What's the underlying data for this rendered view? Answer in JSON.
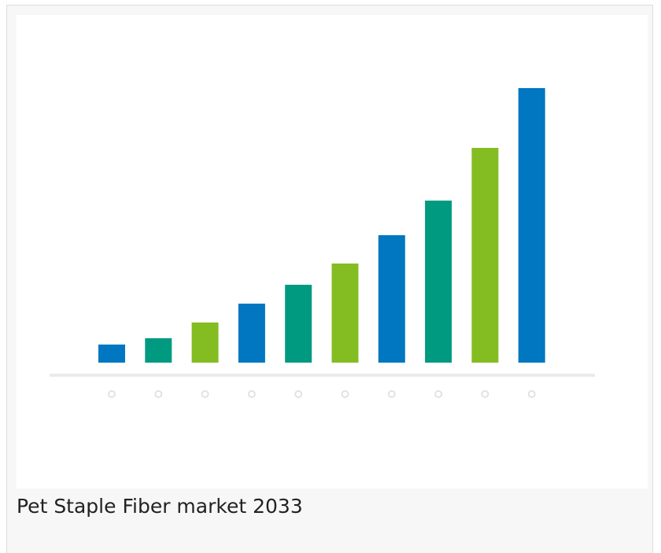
{
  "chart_data": {
    "type": "bar",
    "categories": [
      null,
      null,
      null,
      null,
      null,
      null,
      null,
      null,
      null,
      null
    ],
    "values": [
      23,
      31,
      51,
      75,
      99,
      126,
      162,
      206,
      273,
      349
    ],
    "colors": [
      "#0077c0",
      "#009a80",
      "#84bd22",
      "#0077c0",
      "#009a80",
      "#84bd22",
      "#0077c0",
      "#009a80",
      "#84bd22",
      "#0077c0"
    ]
  },
  "caption": "Pet Staple Fiber market 2033"
}
